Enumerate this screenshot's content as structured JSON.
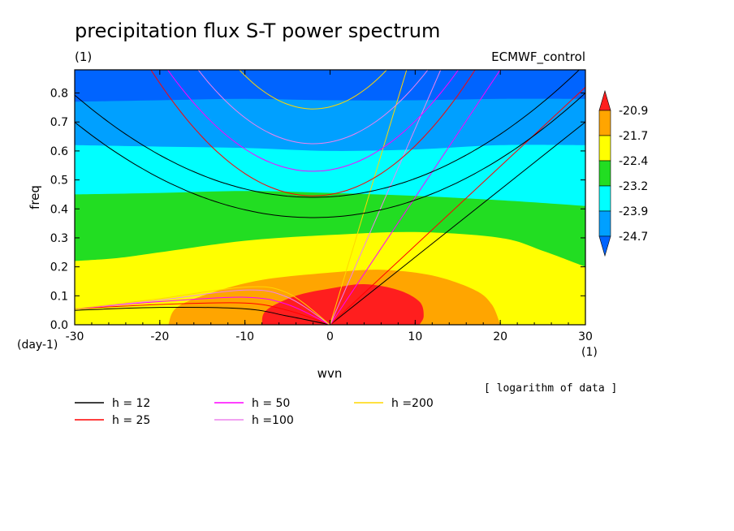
{
  "chart_data": {
    "type": "heatmap",
    "title": "precipitation flux S-T power spectrum",
    "subtitle_left": "(1)",
    "subtitle_right": "ECMWF_control",
    "xlabel": "wvn",
    "ylabel": "freq",
    "x_unit": "(1)",
    "y_unit": "(day-1)",
    "xlim": [
      -30,
      30
    ],
    "ylim": [
      0,
      0.88
    ],
    "x_ticks": [
      -30,
      -20,
      -10,
      0,
      10,
      20,
      30
    ],
    "y_ticks": [
      0.0,
      0.1,
      0.2,
      0.3,
      0.4,
      0.5,
      0.6,
      0.7,
      0.8
    ],
    "y_tick_labels": [
      "0.0",
      "0.1",
      "0.2",
      "0.3",
      "0.4",
      "0.5",
      "0.6",
      "0.7",
      "0.8"
    ],
    "note": "[ logarithm of data ]",
    "colorbar": {
      "levels": [
        "-20.9",
        "-21.7",
        "-22.4",
        "-23.2",
        "-23.9",
        "-24.7"
      ],
      "colors": [
        "#ff1e1e",
        "#ffa500",
        "#ffff00",
        "#22dd22",
        "#00ffff",
        "#00a0ff",
        "#0064ff"
      ]
    },
    "fill_colors": {
      "deep_blue": "#0064ff",
      "light_blue": "#00a0ff",
      "cyan": "#00ffff",
      "green": "#22dd22",
      "yellow": "#ffff00",
      "orange": "#ffa500",
      "red": "#ff1e1e"
    },
    "contour_bands": [
      {
        "name": "green-top",
        "color": "#22dd22",
        "x": [
          -30,
          -20,
          -10,
          0,
          10,
          20,
          30
        ],
        "y": [
          0.45,
          0.455,
          0.462,
          0.455,
          0.445,
          0.43,
          0.41
        ]
      },
      {
        "name": "yellow-top",
        "color": "#ffff00",
        "x": [
          -30,
          -25,
          -20,
          -10,
          0,
          10,
          20,
          25,
          30
        ],
        "y": [
          0.22,
          0.23,
          0.25,
          0.29,
          0.31,
          0.32,
          0.3,
          0.255,
          0.2
        ]
      },
      {
        "name": "cyan-top",
        "color": "#00ffff",
        "x": [
          -30,
          -20,
          -10,
          0,
          10,
          20,
          30
        ],
        "y": [
          0.62,
          0.615,
          0.61,
          0.6,
          0.605,
          0.62,
          0.62
        ]
      },
      {
        "name": "lightblue-top",
        "color": "#00a0ff",
        "x": [
          -30,
          -20,
          -10,
          0,
          10,
          20,
          30
        ],
        "y": [
          0.77,
          0.775,
          0.78,
          0.775,
          0.775,
          0.78,
          0.78
        ]
      },
      {
        "name": "orange",
        "color": "#ffa500",
        "x": [
          -19,
          -18,
          -14,
          -8,
          0,
          6,
          12,
          17,
          19,
          20
        ],
        "y": [
          0,
          0.06,
          0.11,
          0.155,
          0.18,
          0.19,
          0.17,
          0.12,
          0.07,
          0
        ]
      },
      {
        "name": "red",
        "color": "#ff1e1e",
        "x": [
          -8,
          -7.5,
          -4,
          0,
          4,
          8,
          10.5,
          11,
          10.5
        ],
        "y": [
          0,
          0.05,
          0.1,
          0.125,
          0.14,
          0.12,
          0.08,
          0.03,
          0
        ]
      }
    ],
    "dispersion_curves": {
      "legend": [
        {
          "label": "h = 12",
          "color": "#000000"
        },
        {
          "label": "h = 25",
          "color": "#ff0000"
        },
        {
          "label": "h = 50",
          "color": "#ff00ff"
        },
        {
          "label": "h =100",
          "color": "#ee82ee"
        },
        {
          "label": "h =200",
          "color": "#ffd700"
        }
      ],
      "kelvin_lines": [
        {
          "h": 12,
          "color": "#000000",
          "x": [
            0,
            30
          ],
          "y": [
            0,
            0.7
          ]
        },
        {
          "h": 25,
          "color": "#ff0000",
          "x": [
            0,
            30
          ],
          "y": [
            0,
            0.82
          ]
        },
        {
          "h": 50,
          "color": "#ff00ff",
          "x": [
            0,
            20
          ],
          "y": [
            0,
            0.88
          ]
        },
        {
          "h": 100,
          "color": "#ee82ee",
          "x": [
            0,
            13
          ],
          "y": [
            0,
            0.88
          ]
        },
        {
          "h": 200,
          "color": "#ffd700",
          "x": [
            0,
            9
          ],
          "y": [
            0,
            0.88
          ]
        }
      ],
      "westward_arcs": [
        {
          "h": 12,
          "color": "#000000",
          "x": [
            -30,
            -20,
            -10,
            -5,
            0
          ],
          "y": [
            0.05,
            0.06,
            0.055,
            0.03,
            0
          ]
        },
        {
          "h": 25,
          "color": "#ff0000",
          "x": [
            -30,
            -20,
            -10,
            -5,
            0
          ],
          "y": [
            0.055,
            0.07,
            0.075,
            0.05,
            0
          ]
        },
        {
          "h": 50,
          "color": "#ff00ff",
          "x": [
            -30,
            -20,
            -10,
            -5,
            0
          ],
          "y": [
            0.055,
            0.08,
            0.095,
            0.07,
            0
          ]
        },
        {
          "h": 100,
          "color": "#ee82ee",
          "x": [
            -30,
            -20,
            -10,
            -5,
            0
          ],
          "y": [
            0.055,
            0.085,
            0.12,
            0.095,
            0
          ]
        },
        {
          "h": 200,
          "color": "#ffd700",
          "x": [
            -30,
            -20,
            -10,
            -5,
            0
          ],
          "y": [
            0.055,
            0.09,
            0.13,
            0.11,
            0
          ]
        }
      ],
      "parabolas": [
        {
          "h": 12,
          "color": "#000000",
          "kmin": -2,
          "fmin": 0.37,
          "a": 0.00042
        },
        {
          "h": 12,
          "color": "#000000",
          "kmin": -2,
          "fmin": 0.44,
          "a": 0.00045
        },
        {
          "h": 25,
          "color": "#ff0000",
          "kmin": -2,
          "fmin": 0.445,
          "a": 0.0012
        },
        {
          "h": 50,
          "color": "#ff00ff",
          "kmin": -2,
          "fmin": 0.53,
          "a": 0.0012
        },
        {
          "h": 100,
          "color": "#ee82ee",
          "kmin": -2,
          "fmin": 0.625,
          "a": 0.0014
        },
        {
          "h": 200,
          "color": "#ffd700",
          "kmin": -2,
          "fmin": 0.745,
          "a": 0.0018
        }
      ]
    }
  }
}
